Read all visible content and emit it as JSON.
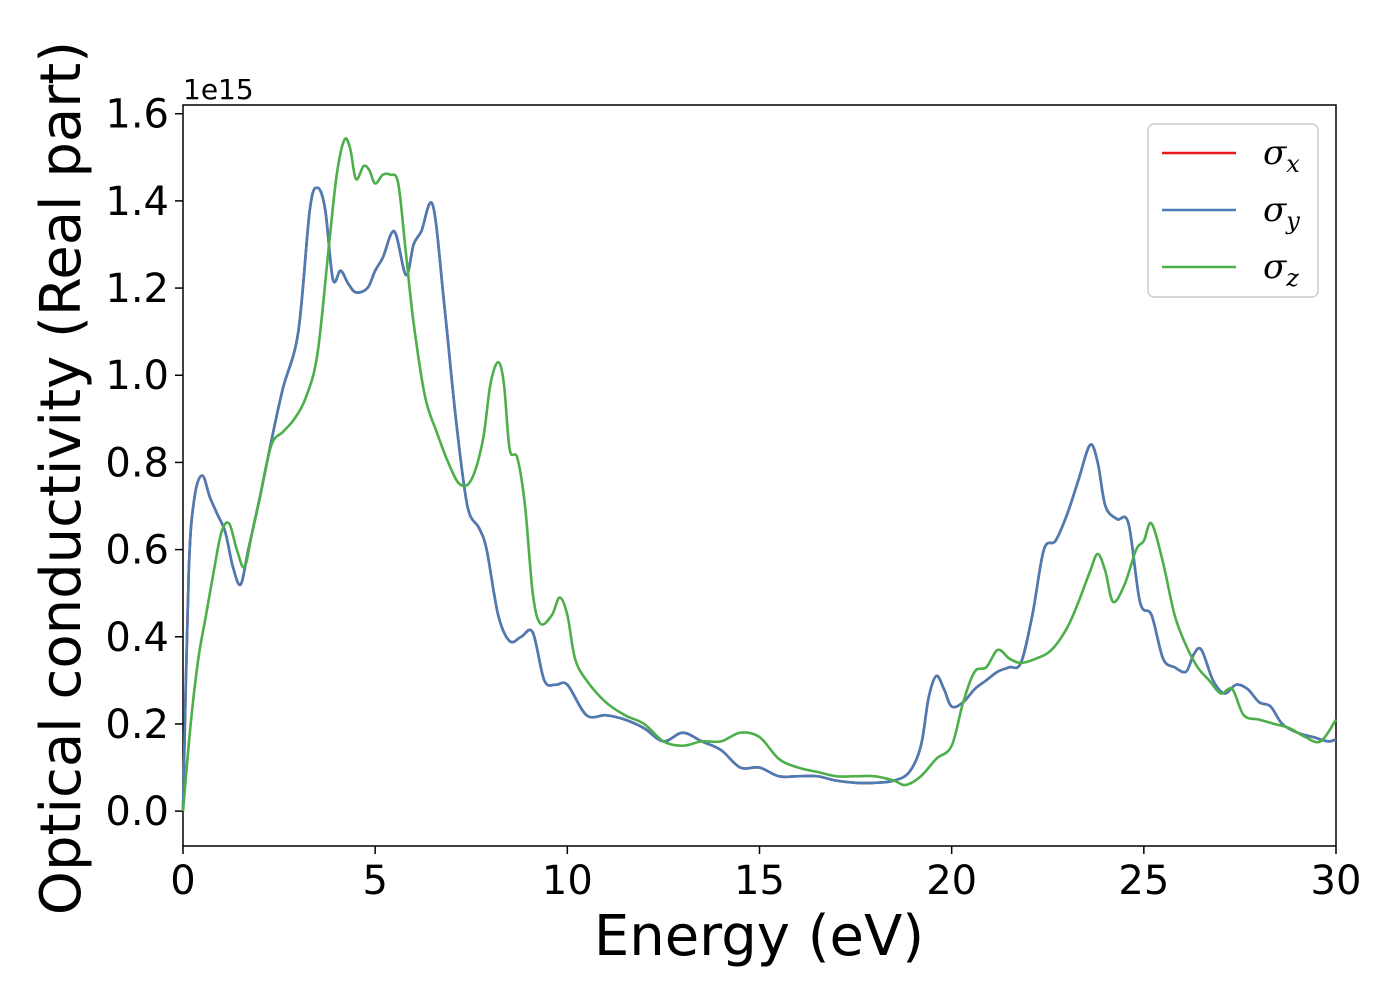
{
  "chart_data": {
    "type": "line",
    "xlabel": "Energy (eV)",
    "ylabel": "Optical conductivity (Real part)",
    "y_offset_label": "1e15",
    "xlim": [
      0,
      30
    ],
    "ylim": [
      -0.08,
      1.62
    ],
    "x_ticks": [
      0,
      5,
      10,
      15,
      20,
      25,
      30
    ],
    "y_ticks": [
      0.0,
      0.2,
      0.4,
      0.6,
      0.8,
      1.0,
      1.2,
      1.4,
      1.6
    ],
    "x_tick_labels": [
      "0",
      "5",
      "10",
      "15",
      "20",
      "25",
      "30"
    ],
    "y_tick_labels": [
      "0.0",
      "0.2",
      "0.4",
      "0.6",
      "0.8",
      "1.0",
      "1.2",
      "1.4",
      "1.6"
    ],
    "grid": false,
    "legend_position": "top-right",
    "series": [
      {
        "name": "σx",
        "symbol": "σ",
        "subscript": "x",
        "color": "#e41a1c",
        "x": [
          0,
          0.15,
          0.3,
          0.5,
          0.7,
          0.9,
          1.1,
          1.3,
          1.5,
          1.7,
          2.0,
          2.3,
          2.6,
          3.0,
          3.3,
          3.5,
          3.7,
          3.9,
          4.1,
          4.3,
          4.5,
          4.8,
          5.0,
          5.2,
          5.5,
          5.8,
          6.0,
          6.2,
          6.5,
          6.8,
          7.1,
          7.4,
          7.7,
          7.9,
          8.2,
          8.5,
          8.8,
          9.1,
          9.4,
          9.7,
          10.0,
          10.5,
          11.0,
          11.5,
          12.0,
          12.5,
          13.0,
          13.5,
          14.0,
          14.5,
          15.0,
          15.5,
          16.0,
          16.5,
          17.0,
          17.5,
          18.0,
          18.5,
          18.9,
          19.2,
          19.4,
          19.6,
          19.8,
          20.0,
          20.3,
          20.6,
          20.9,
          21.2,
          21.5,
          21.8,
          22.1,
          22.4,
          22.7,
          23.0,
          23.3,
          23.6,
          23.8,
          24.0,
          24.3,
          24.6,
          24.9,
          25.2,
          25.5,
          25.8,
          26.1,
          26.3,
          26.5,
          26.8,
          27.1,
          27.4,
          27.7,
          28.0,
          28.3,
          28.6,
          29.0,
          29.4,
          29.8,
          30.0
        ],
        "y": [
          0.0,
          0.55,
          0.72,
          0.77,
          0.72,
          0.68,
          0.64,
          0.56,
          0.52,
          0.6,
          0.72,
          0.85,
          0.97,
          1.1,
          1.38,
          1.43,
          1.38,
          1.22,
          1.24,
          1.21,
          1.19,
          1.2,
          1.24,
          1.27,
          1.33,
          1.23,
          1.3,
          1.33,
          1.39,
          1.16,
          0.9,
          0.7,
          0.65,
          0.6,
          0.45,
          0.39,
          0.4,
          0.41,
          0.3,
          0.29,
          0.29,
          0.22,
          0.22,
          0.21,
          0.19,
          0.16,
          0.18,
          0.16,
          0.14,
          0.1,
          0.1,
          0.08,
          0.08,
          0.08,
          0.07,
          0.065,
          0.065,
          0.07,
          0.09,
          0.15,
          0.26,
          0.31,
          0.28,
          0.24,
          0.25,
          0.28,
          0.3,
          0.32,
          0.33,
          0.34,
          0.45,
          0.6,
          0.62,
          0.68,
          0.76,
          0.84,
          0.8,
          0.7,
          0.67,
          0.66,
          0.48,
          0.45,
          0.35,
          0.33,
          0.32,
          0.36,
          0.37,
          0.3,
          0.27,
          0.29,
          0.28,
          0.25,
          0.24,
          0.2,
          0.18,
          0.17,
          0.16,
          0.165
        ]
      },
      {
        "name": "σy",
        "symbol": "σ",
        "subscript": "y",
        "color": "#4a7cb5",
        "x": [
          0,
          0.15,
          0.3,
          0.5,
          0.7,
          0.9,
          1.1,
          1.3,
          1.5,
          1.7,
          2.0,
          2.3,
          2.6,
          3.0,
          3.3,
          3.5,
          3.7,
          3.9,
          4.1,
          4.3,
          4.5,
          4.8,
          5.0,
          5.2,
          5.5,
          5.8,
          6.0,
          6.2,
          6.5,
          6.8,
          7.1,
          7.4,
          7.7,
          7.9,
          8.2,
          8.5,
          8.8,
          9.1,
          9.4,
          9.7,
          10.0,
          10.5,
          11.0,
          11.5,
          12.0,
          12.5,
          13.0,
          13.5,
          14.0,
          14.5,
          15.0,
          15.5,
          16.0,
          16.5,
          17.0,
          17.5,
          18.0,
          18.5,
          18.9,
          19.2,
          19.4,
          19.6,
          19.8,
          20.0,
          20.3,
          20.6,
          20.9,
          21.2,
          21.5,
          21.8,
          22.1,
          22.4,
          22.7,
          23.0,
          23.3,
          23.6,
          23.8,
          24.0,
          24.3,
          24.6,
          24.9,
          25.2,
          25.5,
          25.8,
          26.1,
          26.3,
          26.5,
          26.8,
          27.1,
          27.4,
          27.7,
          28.0,
          28.3,
          28.6,
          29.0,
          29.4,
          29.8,
          30.0
        ],
        "y": [
          0.0,
          0.55,
          0.72,
          0.77,
          0.72,
          0.68,
          0.64,
          0.56,
          0.52,
          0.6,
          0.72,
          0.85,
          0.97,
          1.1,
          1.38,
          1.43,
          1.38,
          1.22,
          1.24,
          1.21,
          1.19,
          1.2,
          1.24,
          1.27,
          1.33,
          1.23,
          1.3,
          1.33,
          1.39,
          1.16,
          0.9,
          0.7,
          0.65,
          0.6,
          0.45,
          0.39,
          0.4,
          0.41,
          0.3,
          0.29,
          0.29,
          0.22,
          0.22,
          0.21,
          0.19,
          0.16,
          0.18,
          0.16,
          0.14,
          0.1,
          0.1,
          0.08,
          0.08,
          0.08,
          0.07,
          0.065,
          0.065,
          0.07,
          0.09,
          0.15,
          0.26,
          0.31,
          0.28,
          0.24,
          0.25,
          0.28,
          0.3,
          0.32,
          0.33,
          0.34,
          0.45,
          0.6,
          0.62,
          0.68,
          0.76,
          0.84,
          0.8,
          0.7,
          0.67,
          0.66,
          0.48,
          0.45,
          0.35,
          0.33,
          0.32,
          0.36,
          0.37,
          0.3,
          0.27,
          0.29,
          0.28,
          0.25,
          0.24,
          0.2,
          0.18,
          0.17,
          0.16,
          0.165
        ]
      },
      {
        "name": "σz",
        "symbol": "σ",
        "subscript": "z",
        "color": "#4daf4a",
        "x": [
          0,
          0.2,
          0.4,
          0.6,
          0.8,
          1.0,
          1.2,
          1.4,
          1.6,
          1.8,
          2.0,
          2.3,
          2.6,
          2.9,
          3.2,
          3.5,
          3.8,
          4.0,
          4.2,
          4.35,
          4.5,
          4.7,
          4.85,
          5.0,
          5.2,
          5.4,
          5.6,
          5.8,
          6.0,
          6.3,
          6.6,
          6.9,
          7.2,
          7.5,
          7.8,
          8.0,
          8.2,
          8.35,
          8.5,
          8.7,
          8.9,
          9.1,
          9.3,
          9.6,
          9.8,
          10.0,
          10.2,
          10.5,
          11.0,
          11.5,
          12.0,
          12.5,
          13.0,
          13.5,
          14.0,
          14.5,
          15.0,
          15.5,
          16.0,
          16.5,
          17.0,
          17.5,
          18.0,
          18.5,
          18.8,
          19.2,
          19.6,
          20.0,
          20.3,
          20.6,
          20.9,
          21.2,
          21.5,
          21.8,
          22.2,
          22.6,
          23.0,
          23.3,
          23.6,
          23.8,
          24.0,
          24.2,
          24.5,
          24.8,
          25.0,
          25.2,
          25.5,
          25.8,
          26.1,
          26.4,
          26.7,
          27.0,
          27.3,
          27.6,
          28.0,
          28.4,
          28.8,
          29.2,
          29.6,
          30.0
        ],
        "y": [
          0.0,
          0.2,
          0.35,
          0.45,
          0.55,
          0.64,
          0.66,
          0.6,
          0.56,
          0.64,
          0.72,
          0.84,
          0.87,
          0.9,
          0.95,
          1.05,
          1.3,
          1.46,
          1.54,
          1.52,
          1.45,
          1.48,
          1.47,
          1.44,
          1.46,
          1.46,
          1.44,
          1.28,
          1.12,
          0.95,
          0.87,
          0.8,
          0.75,
          0.76,
          0.85,
          0.98,
          1.03,
          0.98,
          0.83,
          0.81,
          0.7,
          0.5,
          0.43,
          0.45,
          0.49,
          0.45,
          0.35,
          0.3,
          0.25,
          0.22,
          0.2,
          0.16,
          0.15,
          0.16,
          0.16,
          0.18,
          0.17,
          0.12,
          0.1,
          0.09,
          0.08,
          0.08,
          0.08,
          0.07,
          0.06,
          0.08,
          0.12,
          0.15,
          0.25,
          0.32,
          0.33,
          0.37,
          0.35,
          0.34,
          0.35,
          0.37,
          0.42,
          0.48,
          0.55,
          0.59,
          0.55,
          0.48,
          0.52,
          0.6,
          0.62,
          0.66,
          0.57,
          0.45,
          0.38,
          0.33,
          0.3,
          0.27,
          0.28,
          0.22,
          0.21,
          0.2,
          0.19,
          0.17,
          0.16,
          0.21
        ]
      }
    ]
  }
}
